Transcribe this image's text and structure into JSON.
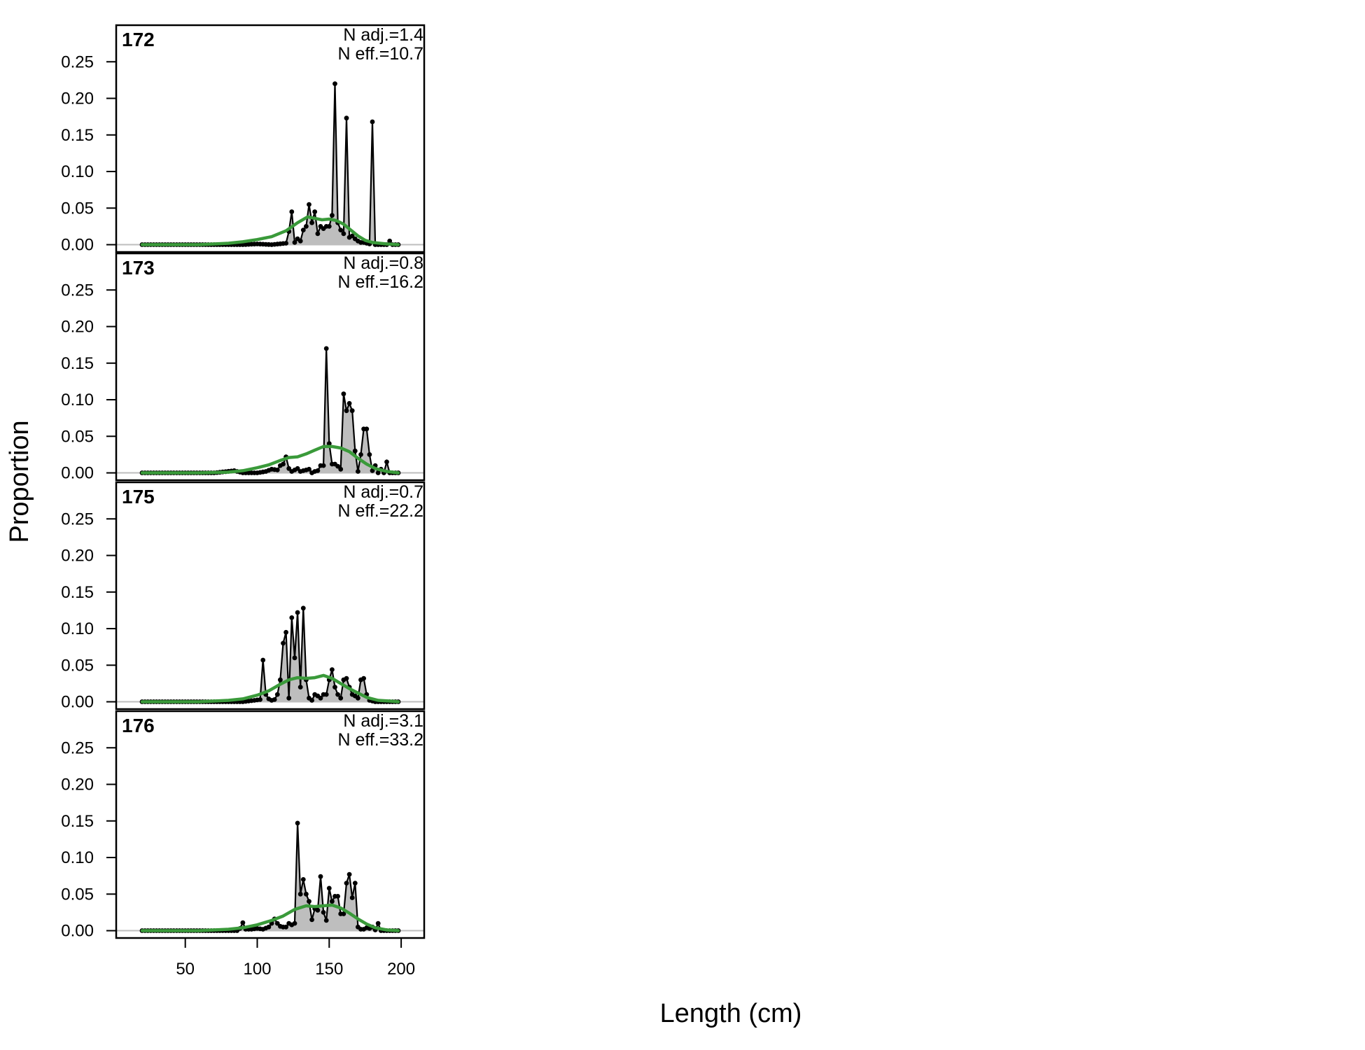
{
  "chart_data": {
    "type": "line",
    "xlabel": "Length (cm)",
    "ylabel": "Proportion",
    "xlim": [
      2,
      216
    ],
    "ylim": [
      -0.01,
      0.3
    ],
    "x_ticks": [
      50,
      100,
      150,
      200
    ],
    "y_ticks": [
      0.0,
      0.05,
      0.1,
      0.15,
      0.2,
      0.25
    ],
    "y_tick_labels": [
      "0.00",
      "0.05",
      "0.10",
      "0.15",
      "0.20",
      "0.25"
    ],
    "colors": {
      "observed_fill": "#bebebe",
      "observed_line": "#000000",
      "expected_line": "#3a9a3a",
      "zero_line": "#bebebe"
    },
    "panels": [
      {
        "label": "172",
        "n_adj": "N adj.=1.4",
        "n_eff": "N eff.=10.7",
        "observed": [
          [
            20,
            0
          ],
          [
            90,
            0
          ],
          [
            100,
            0.001
          ],
          [
            110,
            0
          ],
          [
            120,
            0.002
          ],
          [
            122,
            0.018
          ],
          [
            124,
            0.045
          ],
          [
            126,
            0.003
          ],
          [
            128,
            0.008
          ],
          [
            130,
            0.005
          ],
          [
            132,
            0.02
          ],
          [
            134,
            0.025
          ],
          [
            136,
            0.055
          ],
          [
            138,
            0.03
          ],
          [
            140,
            0.045
          ],
          [
            142,
            0.015
          ],
          [
            144,
            0.025
          ],
          [
            146,
            0.022
          ],
          [
            148,
            0.025
          ],
          [
            150,
            0.025
          ],
          [
            152,
            0.04
          ],
          [
            154,
            0.22
          ],
          [
            156,
            0.03
          ],
          [
            158,
            0.02
          ],
          [
            160,
            0.015
          ],
          [
            162,
            0.173
          ],
          [
            164,
            0.01
          ],
          [
            166,
            0.012
          ],
          [
            168,
            0.008
          ],
          [
            170,
            0.005
          ],
          [
            172,
            0.003
          ],
          [
            174,
            0.003
          ],
          [
            176,
            0.002
          ],
          [
            178,
            0.001
          ],
          [
            180,
            0.168
          ],
          [
            182,
            0
          ],
          [
            186,
            0
          ],
          [
            188,
            0
          ],
          [
            190,
            0
          ],
          [
            192,
            0.005
          ],
          [
            194,
            0
          ],
          [
            198,
            0
          ]
        ],
        "expected": [
          [
            20,
            0
          ],
          [
            60,
            0
          ],
          [
            80,
            0.002
          ],
          [
            90,
            0.004
          ],
          [
            100,
            0.007
          ],
          [
            110,
            0.011
          ],
          [
            120,
            0.019
          ],
          [
            128,
            0.03
          ],
          [
            135,
            0.038
          ],
          [
            140,
            0.036
          ],
          [
            145,
            0.034
          ],
          [
            150,
            0.035
          ],
          [
            155,
            0.033
          ],
          [
            160,
            0.028
          ],
          [
            165,
            0.02
          ],
          [
            170,
            0.012
          ],
          [
            175,
            0.006
          ],
          [
            180,
            0.003
          ],
          [
            190,
            0.001
          ],
          [
            198,
            0
          ]
        ]
      },
      {
        "label": "173",
        "n_adj": "N adj.=0.8",
        "n_eff": "N eff.=16.2",
        "observed": [
          [
            20,
            0
          ],
          [
            70,
            0
          ],
          [
            84,
            0.003
          ],
          [
            90,
            0
          ],
          [
            100,
            0
          ],
          [
            106,
            0.002
          ],
          [
            110,
            0.005
          ],
          [
            114,
            0.004
          ],
          [
            116,
            0.01
          ],
          [
            118,
            0.012
          ],
          [
            120,
            0.022
          ],
          [
            122,
            0.006
          ],
          [
            124,
            0.002
          ],
          [
            126,
            0.004
          ],
          [
            128,
            0.006
          ],
          [
            130,
            0.002
          ],
          [
            132,
            0.003
          ],
          [
            134,
            0.004
          ],
          [
            136,
            0.005
          ],
          [
            138,
            0
          ],
          [
            140,
            0.002
          ],
          [
            142,
            0.003
          ],
          [
            144,
            0.01
          ],
          [
            146,
            0.01
          ],
          [
            148,
            0.17
          ],
          [
            150,
            0.04
          ],
          [
            152,
            0.012
          ],
          [
            154,
            0.012
          ],
          [
            156,
            0.009
          ],
          [
            158,
            0.005
          ],
          [
            160,
            0.108
          ],
          [
            162,
            0.085
          ],
          [
            164,
            0.095
          ],
          [
            166,
            0.085
          ],
          [
            168,
            0.03
          ],
          [
            170,
            0.002
          ],
          [
            172,
            0.025
          ],
          [
            174,
            0.06
          ],
          [
            176,
            0.06
          ],
          [
            178,
            0.025
          ],
          [
            180,
            0.003
          ],
          [
            182,
            0.01
          ],
          [
            184,
            0
          ],
          [
            186,
            0.005
          ],
          [
            188,
            0
          ],
          [
            190,
            0.015
          ],
          [
            192,
            0
          ],
          [
            198,
            0
          ]
        ],
        "expected": [
          [
            20,
            0
          ],
          [
            60,
            0
          ],
          [
            80,
            0.001
          ],
          [
            90,
            0.003
          ],
          [
            100,
            0.007
          ],
          [
            108,
            0.011
          ],
          [
            116,
            0.017
          ],
          [
            122,
            0.021
          ],
          [
            128,
            0.022
          ],
          [
            134,
            0.026
          ],
          [
            140,
            0.031
          ],
          [
            146,
            0.036
          ],
          [
            152,
            0.036
          ],
          [
            158,
            0.034
          ],
          [
            164,
            0.029
          ],
          [
            170,
            0.02
          ],
          [
            176,
            0.012
          ],
          [
            182,
            0.006
          ],
          [
            190,
            0.002
          ],
          [
            198,
            0
          ]
        ]
      },
      {
        "label": "175",
        "n_adj": "N adj.=0.7",
        "n_eff": "N eff.=22.2",
        "observed": [
          [
            20,
            0
          ],
          [
            90,
            0
          ],
          [
            102,
            0.003
          ],
          [
            104,
            0.057
          ],
          [
            106,
            0.01
          ],
          [
            108,
            0.004
          ],
          [
            110,
            0.002
          ],
          [
            112,
            0.003
          ],
          [
            114,
            0.01
          ],
          [
            116,
            0.03
          ],
          [
            118,
            0.08
          ],
          [
            120,
            0.095
          ],
          [
            122,
            0.005
          ],
          [
            124,
            0.115
          ],
          [
            126,
            0.06
          ],
          [
            128,
            0.122
          ],
          [
            130,
            0.02
          ],
          [
            132,
            0.128
          ],
          [
            134,
            0.03
          ],
          [
            136,
            0.005
          ],
          [
            138,
            0.002
          ],
          [
            140,
            0.01
          ],
          [
            142,
            0.008
          ],
          [
            144,
            0.005
          ],
          [
            146,
            0.01
          ],
          [
            148,
            0.01
          ],
          [
            150,
            0.03
          ],
          [
            152,
            0.044
          ],
          [
            154,
            0.02
          ],
          [
            156,
            0.01
          ],
          [
            158,
            0.005
          ],
          [
            160,
            0.03
          ],
          [
            162,
            0.032
          ],
          [
            164,
            0.02
          ],
          [
            166,
            0.01
          ],
          [
            168,
            0.008
          ],
          [
            170,
            0.005
          ],
          [
            172,
            0.03
          ],
          [
            174,
            0.032
          ],
          [
            176,
            0.01
          ],
          [
            178,
            0.002
          ],
          [
            182,
            0
          ],
          [
            198,
            0
          ]
        ],
        "expected": [
          [
            20,
            0
          ],
          [
            60,
            0
          ],
          [
            80,
            0.002
          ],
          [
            90,
            0.004
          ],
          [
            100,
            0.009
          ],
          [
            108,
            0.015
          ],
          [
            116,
            0.024
          ],
          [
            122,
            0.03
          ],
          [
            128,
            0.033
          ],
          [
            134,
            0.032
          ],
          [
            140,
            0.033
          ],
          [
            146,
            0.036
          ],
          [
            152,
            0.032
          ],
          [
            158,
            0.025
          ],
          [
            164,
            0.018
          ],
          [
            170,
            0.012
          ],
          [
            176,
            0.006
          ],
          [
            184,
            0.002
          ],
          [
            192,
            0.001
          ],
          [
            198,
            0
          ]
        ]
      },
      {
        "label": "176",
        "n_adj": "N adj.=3.1",
        "n_eff": "N eff.=33.2",
        "observed": [
          [
            20,
            0
          ],
          [
            86,
            0
          ],
          [
            88,
            0.003
          ],
          [
            90,
            0.011
          ],
          [
            92,
            0.002
          ],
          [
            96,
            0.002
          ],
          [
            100,
            0.003
          ],
          [
            104,
            0.002
          ],
          [
            108,
            0.005
          ],
          [
            110,
            0.01
          ],
          [
            112,
            0.016
          ],
          [
            114,
            0.01
          ],
          [
            116,
            0.006
          ],
          [
            118,
            0.005
          ],
          [
            120,
            0.005
          ],
          [
            122,
            0.01
          ],
          [
            124,
            0.008
          ],
          [
            126,
            0.01
          ],
          [
            128,
            0.147
          ],
          [
            130,
            0.05
          ],
          [
            132,
            0.07
          ],
          [
            134,
            0.05
          ],
          [
            136,
            0.04
          ],
          [
            138,
            0.015
          ],
          [
            140,
            0.03
          ],
          [
            142,
            0.028
          ],
          [
            144,
            0.074
          ],
          [
            146,
            0.025
          ],
          [
            148,
            0.014
          ],
          [
            150,
            0.058
          ],
          [
            152,
            0.04
          ],
          [
            154,
            0.047
          ],
          [
            156,
            0.047
          ],
          [
            158,
            0.023
          ],
          [
            160,
            0.023
          ],
          [
            162,
            0.065
          ],
          [
            164,
            0.077
          ],
          [
            166,
            0.045
          ],
          [
            168,
            0.065
          ],
          [
            170,
            0.005
          ],
          [
            172,
            0.002
          ],
          [
            174,
            0.002
          ],
          [
            176,
            0.004
          ],
          [
            178,
            0.003
          ],
          [
            180,
            0.005
          ],
          [
            182,
            0.001
          ],
          [
            184,
            0.01
          ],
          [
            186,
            0
          ],
          [
            198,
            0
          ]
        ],
        "expected": [
          [
            20,
            0
          ],
          [
            60,
            0
          ],
          [
            80,
            0.002
          ],
          [
            90,
            0.004
          ],
          [
            100,
            0.008
          ],
          [
            110,
            0.014
          ],
          [
            118,
            0.02
          ],
          [
            126,
            0.029
          ],
          [
            134,
            0.034
          ],
          [
            140,
            0.033
          ],
          [
            146,
            0.034
          ],
          [
            152,
            0.035
          ],
          [
            158,
            0.031
          ],
          [
            164,
            0.024
          ],
          [
            170,
            0.016
          ],
          [
            176,
            0.009
          ],
          [
            182,
            0.004
          ],
          [
            190,
            0.001
          ],
          [
            198,
            0
          ]
        ]
      }
    ]
  }
}
